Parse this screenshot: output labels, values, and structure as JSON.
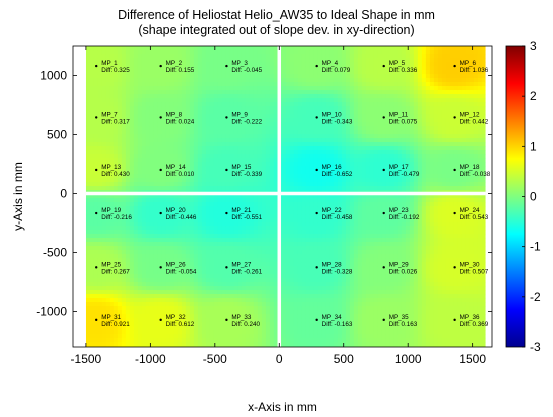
{
  "chart_data": {
    "type": "heatmap",
    "title": "Difference of Heliostat Helio_AW35 to Ideal Shape in mm",
    "subtitle": "(shape integrated out of slope dev. in xy-direction)",
    "xlabel": "x-Axis in mm",
    "ylabel": "y-Axis in mm",
    "xlim": [
      -1600,
      1650
    ],
    "ylim": [
      -1300,
      1250
    ],
    "xticks": [
      "-1500",
      "-1000",
      "-500",
      "0",
      "500",
      "1000",
      "1500"
    ],
    "xtick_values": [
      -1500,
      -1000,
      -500,
      0,
      500,
      1000,
      1500
    ],
    "yticks": [
      "1000",
      "500",
      "0",
      "-500",
      "-1000"
    ],
    "ytick_values": [
      1000,
      500,
      0,
      -500,
      -1000
    ],
    "colorbar": {
      "range": [
        -3,
        3
      ],
      "ticks": [
        "3",
        "2",
        "1",
        "0",
        "-1",
        "-2",
        "-3"
      ],
      "tick_values": [
        3,
        2,
        1,
        0,
        -1,
        -2,
        -3
      ],
      "colormap": "jet"
    },
    "grid": false,
    "point_label_prefix": "Diff: ",
    "points": [
      {
        "name": "MP_1",
        "x": -1420,
        "y": 1080,
        "diff": "0.325"
      },
      {
        "name": "MP_2",
        "x": -920,
        "y": 1080,
        "diff": "0.155"
      },
      {
        "name": "MP_3",
        "x": -410,
        "y": 1080,
        "diff": "-0.045"
      },
      {
        "name": "MP_4",
        "x": 290,
        "y": 1080,
        "diff": "0.079"
      },
      {
        "name": "MP_5",
        "x": 810,
        "y": 1080,
        "diff": "0.336"
      },
      {
        "name": "MP_6",
        "x": 1360,
        "y": 1080,
        "diff": "1.036"
      },
      {
        "name": "MP_7",
        "x": -1420,
        "y": 645,
        "diff": "0.317"
      },
      {
        "name": "MP_8",
        "x": -920,
        "y": 645,
        "diff": "0.024"
      },
      {
        "name": "MP_9",
        "x": -410,
        "y": 645,
        "diff": "-0.222"
      },
      {
        "name": "MP_10",
        "x": 290,
        "y": 645,
        "diff": "-0.343"
      },
      {
        "name": "MP_11",
        "x": 810,
        "y": 645,
        "diff": "0.075"
      },
      {
        "name": "MP_12",
        "x": 1360,
        "y": 645,
        "diff": "0.442"
      },
      {
        "name": "MP_13",
        "x": -1420,
        "y": 200,
        "diff": "0.430"
      },
      {
        "name": "MP_14",
        "x": -920,
        "y": 200,
        "diff": "0.010"
      },
      {
        "name": "MP_15",
        "x": -410,
        "y": 200,
        "diff": "-0.339"
      },
      {
        "name": "MP_16",
        "x": 290,
        "y": 200,
        "diff": "-0.652"
      },
      {
        "name": "MP_17",
        "x": 810,
        "y": 200,
        "diff": "-0.479"
      },
      {
        "name": "MP_18",
        "x": 1360,
        "y": 200,
        "diff": "-0.038"
      },
      {
        "name": "MP_19",
        "x": -1420,
        "y": -165,
        "diff": "-0.216"
      },
      {
        "name": "MP_20",
        "x": -920,
        "y": -165,
        "diff": "-0.446"
      },
      {
        "name": "MP_21",
        "x": -410,
        "y": -165,
        "diff": "-0.551"
      },
      {
        "name": "MP_22",
        "x": 290,
        "y": -165,
        "diff": "-0.458"
      },
      {
        "name": "MP_23",
        "x": 810,
        "y": -165,
        "diff": "-0.192"
      },
      {
        "name": "MP_24",
        "x": 1360,
        "y": -165,
        "diff": "0.543"
      },
      {
        "name": "MP_25",
        "x": -1420,
        "y": -625,
        "diff": "0.267"
      },
      {
        "name": "MP_26",
        "x": -920,
        "y": -625,
        "diff": "-0.054"
      },
      {
        "name": "MP_27",
        "x": -410,
        "y": -625,
        "diff": "-0.261"
      },
      {
        "name": "MP_28",
        "x": 290,
        "y": -625,
        "diff": "-0.328"
      },
      {
        "name": "MP_29",
        "x": 810,
        "y": -625,
        "diff": "0.026"
      },
      {
        "name": "MP_30",
        "x": 1360,
        "y": -625,
        "diff": "0.507"
      },
      {
        "name": "MP_31",
        "x": -1420,
        "y": -1070,
        "diff": "0.921"
      },
      {
        "name": "MP_32",
        "x": -920,
        "y": -1070,
        "diff": "0.612"
      },
      {
        "name": "MP_33",
        "x": -410,
        "y": -1070,
        "diff": "0.240"
      },
      {
        "name": "MP_34",
        "x": 290,
        "y": -1070,
        "diff": "-0.163"
      },
      {
        "name": "MP_35",
        "x": 810,
        "y": -1070,
        "diff": "0.163"
      },
      {
        "name": "MP_36",
        "x": 1360,
        "y": -1070,
        "diff": "0.369"
      }
    ],
    "surface_extent": {
      "x": [
        -1500,
        1600
      ],
      "y": [
        -1300,
        1250
      ]
    },
    "gap_lines": {
      "x": [
        0
      ],
      "y": [
        0
      ]
    }
  }
}
